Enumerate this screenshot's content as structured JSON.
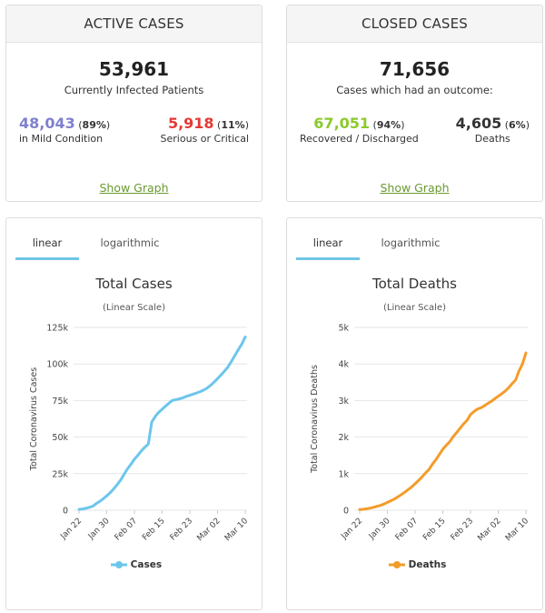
{
  "active": {
    "title": "ACTIVE CASES",
    "total": "53,961",
    "total_label": "Currently Infected Patients",
    "mild": {
      "value": "48,043",
      "pct_open": " (",
      "pct": "89%",
      "pct_close": ")",
      "label": "in Mild Condition",
      "color": "#8080cf"
    },
    "serious": {
      "value": "5,918",
      "pct_open": " (",
      "pct": "11%",
      "pct_close": ")",
      "label": "Serious or Critical",
      "color": "#e53935"
    },
    "show_graph": "Show Graph"
  },
  "closed": {
    "title": "CLOSED CASES",
    "total": "71,656",
    "total_label": "Cases which had an outcome:",
    "recovered": {
      "value": "67,051",
      "pct_open": " (",
      "pct": "94%",
      "pct_close": ")",
      "label": "Recovered / Discharged",
      "color": "#8ACA2B"
    },
    "deaths": {
      "value": "4,605",
      "pct_open": " (",
      "pct": "6%",
      "pct_close": ")",
      "label": "Deaths",
      "color": "#333333"
    },
    "show_graph": "Show Graph"
  },
  "charts": {
    "left": {
      "tab_linear": "linear",
      "tab_log": "logarithmic",
      "title": "Total Cases",
      "subtitle": "(Linear Scale)",
      "legend": "Cases"
    },
    "right": {
      "tab_linear": "linear",
      "tab_log": "logarithmic",
      "title": "Total Deaths",
      "subtitle": "(Linear Scale)",
      "legend": "Deaths"
    }
  },
  "chart_data": [
    {
      "type": "line",
      "title": "Total Cases",
      "subtitle": "(Linear Scale)",
      "xlabel": "",
      "ylabel": "Total Coronavirus Cases",
      "ylim": [
        0,
        125000
      ],
      "yticks": [
        0,
        25000,
        50000,
        75000,
        100000,
        125000
      ],
      "ytick_labels": [
        "0",
        "25k",
        "50k",
        "75k",
        "100k",
        "125k"
      ],
      "xtick_labels": [
        "Jan 22",
        "Jan 30",
        "Feb 07",
        "Feb 15",
        "Feb 23",
        "Mar 02",
        "Mar 10"
      ],
      "x": [
        "Jan 22",
        "Jan 23",
        "Jan 24",
        "Jan 25",
        "Jan 26",
        "Jan 27",
        "Jan 28",
        "Jan 29",
        "Jan 30",
        "Jan 31",
        "Feb 01",
        "Feb 02",
        "Feb 03",
        "Feb 04",
        "Feb 05",
        "Feb 06",
        "Feb 07",
        "Feb 08",
        "Feb 09",
        "Feb 10",
        "Feb 11",
        "Feb 12",
        "Feb 13",
        "Feb 14",
        "Feb 15",
        "Feb 16",
        "Feb 17",
        "Feb 18",
        "Feb 19",
        "Feb 20",
        "Feb 21",
        "Feb 22",
        "Feb 23",
        "Feb 24",
        "Feb 25",
        "Feb 26",
        "Feb 27",
        "Feb 28",
        "Feb 29",
        "Mar 01",
        "Mar 02",
        "Mar 03",
        "Mar 04",
        "Mar 05",
        "Mar 06",
        "Mar 07",
        "Mar 08",
        "Mar 09",
        "Mar 10"
      ],
      "series": [
        {
          "name": "Cases",
          "color": "#6CC6EC",
          "values": [
            580,
            845,
            1320,
            2015,
            2800,
            4580,
            6065,
            7820,
            9825,
            11950,
            14550,
            17390,
            20630,
            24550,
            28280,
            31480,
            34880,
            37560,
            40550,
            43100,
            45200,
            60400,
            64100,
            66900,
            69050,
            71200,
            73250,
            75150,
            75650,
            76200,
            76850,
            77850,
            78600,
            79400,
            80200,
            81100,
            82150,
            83600,
            85400,
            87600,
            89900,
            92500,
            95100,
            97900,
            101800,
            105800,
            109800,
            113600,
            118500
          ]
        }
      ],
      "legend_position": "bottom",
      "grid": true
    },
    {
      "type": "line",
      "title": "Total Deaths",
      "subtitle": "(Linear Scale)",
      "xlabel": "",
      "ylabel": "Total Coronavirus Deaths",
      "ylim": [
        0,
        5000
      ],
      "yticks": [
        0,
        1000,
        2000,
        3000,
        4000,
        5000
      ],
      "ytick_labels": [
        "0",
        "1k",
        "2k",
        "3k",
        "4k",
        "5k"
      ],
      "xtick_labels": [
        "Jan 22",
        "Jan 30",
        "Feb 07",
        "Feb 15",
        "Feb 23",
        "Mar 02",
        "Mar 10"
      ],
      "x": [
        "Jan 22",
        "Jan 23",
        "Jan 24",
        "Jan 25",
        "Jan 26",
        "Jan 27",
        "Jan 28",
        "Jan 29",
        "Jan 30",
        "Jan 31",
        "Feb 01",
        "Feb 02",
        "Feb 03",
        "Feb 04",
        "Feb 05",
        "Feb 06",
        "Feb 07",
        "Feb 08",
        "Feb 09",
        "Feb 10",
        "Feb 11",
        "Feb 12",
        "Feb 13",
        "Feb 14",
        "Feb 15",
        "Feb 16",
        "Feb 17",
        "Feb 18",
        "Feb 19",
        "Feb 20",
        "Feb 21",
        "Feb 22",
        "Feb 23",
        "Feb 24",
        "Feb 25",
        "Feb 26",
        "Feb 27",
        "Feb 28",
        "Feb 29",
        "Mar 01",
        "Mar 02",
        "Mar 03",
        "Mar 04",
        "Mar 05",
        "Mar 06",
        "Mar 07",
        "Mar 08",
        "Mar 09",
        "Mar 10"
      ],
      "series": [
        {
          "name": "Deaths",
          "color": "#F39C2A",
          "values": [
            17,
            25,
            41,
            56,
            80,
            106,
            132,
            170,
            213,
            259,
            304,
            362,
            426,
            492,
            565,
            638,
            724,
            813,
            910,
            1018,
            1115,
            1261,
            1383,
            1526,
            1669,
            1775,
            1873,
            2009,
            2126,
            2247,
            2360,
            2460,
            2618,
            2699,
            2763,
            2800,
            2858,
            2923,
            2977,
            3050,
            3117,
            3184,
            3257,
            3348,
            3460,
            3560,
            3808,
            4000,
            4300
          ]
        }
      ],
      "legend_position": "bottom",
      "grid": true
    }
  ]
}
